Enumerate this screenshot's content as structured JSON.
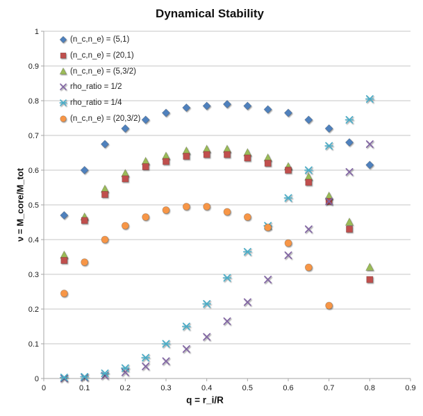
{
  "chart_data": {
    "type": "scatter",
    "title": "Dynamical Stability",
    "xlabel": "q = r_i/R",
    "ylabel": "ν = M_core/M_tot",
    "xlim": [
      0,
      0.9
    ],
    "ylim": [
      0,
      1
    ],
    "x_tick_labels": [
      "0",
      "0.1",
      "0.2",
      "0.3",
      "0.4",
      "0.5",
      "0.6",
      "0.7",
      "0.8",
      "0.9"
    ],
    "y_tick_labels": [
      "0",
      "0.1",
      "0.2",
      "0.3",
      "0.4",
      "0.5",
      "0.6",
      "0.7",
      "0.8",
      "0.9",
      "1"
    ],
    "grid": "horizontal",
    "legend_position": "top-left-inside",
    "x": [
      0.05,
      0.1,
      0.15,
      0.2,
      0.25,
      0.3,
      0.35,
      0.4,
      0.45,
      0.5,
      0.55,
      0.6,
      0.65,
      0.7,
      0.75,
      0.8
    ],
    "series": [
      {
        "name": "(n_c,n_e) = (5,1)",
        "marker": "diamond",
        "color": "#4F81BD",
        "values": [
          0.47,
          0.6,
          0.675,
          0.72,
          0.745,
          0.765,
          0.78,
          0.785,
          0.79,
          0.785,
          0.775,
          0.765,
          0.745,
          0.72,
          0.68,
          0.615
        ]
      },
      {
        "name": "(n_c,n_e) = (20,1)",
        "marker": "square",
        "color": "#C0504D",
        "values": [
          0.34,
          0.455,
          0.53,
          0.575,
          0.61,
          0.625,
          0.64,
          0.645,
          0.645,
          0.635,
          0.62,
          0.6,
          0.565,
          0.51,
          0.43,
          0.285
        ]
      },
      {
        "name": "(n_c,n_e) = (5,3/2)",
        "marker": "triangle",
        "color": "#9BBB59",
        "values": [
          0.355,
          0.465,
          0.545,
          0.59,
          0.625,
          0.64,
          0.655,
          0.66,
          0.66,
          0.65,
          0.635,
          0.61,
          0.58,
          0.525,
          0.45,
          0.32
        ]
      },
      {
        "name": "rho_ratio = 1/2",
        "marker": "x",
        "color": "#8064A2",
        "values": [
          0.0,
          0.003,
          0.008,
          0.018,
          0.035,
          0.05,
          0.085,
          0.12,
          0.165,
          0.22,
          0.285,
          0.355,
          0.43,
          0.51,
          0.595,
          0.675
        ]
      },
      {
        "name": "rho_ratio = 1/4",
        "marker": "star",
        "color": "#4BACC6",
        "values": [
          0.003,
          0.005,
          0.015,
          0.03,
          0.06,
          0.1,
          0.15,
          0.215,
          0.29,
          0.365,
          0.44,
          0.52,
          0.6,
          0.67,
          0.745,
          0.805
        ]
      },
      {
        "name": "(n_c,n_e) = (20,3/2)",
        "marker": "circle",
        "color": "#F79646",
        "values": [
          0.245,
          0.335,
          0.4,
          0.44,
          0.465,
          0.485,
          0.495,
          0.495,
          0.48,
          0.465,
          0.435,
          0.39,
          0.32,
          0.21,
          null,
          null
        ]
      }
    ],
    "draw_order": [
      0,
      2,
      1,
      3,
      4,
      5
    ],
    "colors": {
      "gridline": "#C6C6C6",
      "axis": "#A6A6A6",
      "text": "#1A1A1A"
    }
  }
}
